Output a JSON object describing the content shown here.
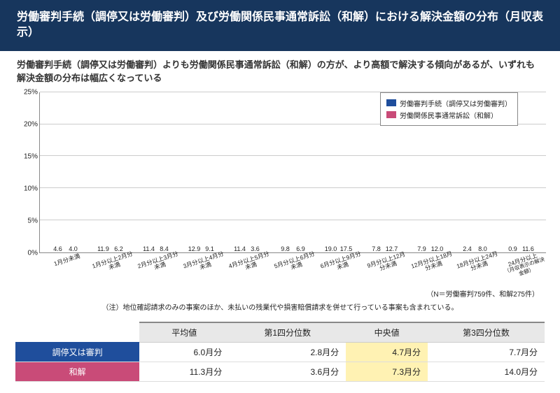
{
  "header": {
    "title": "労働審判手続（調停又は労働審判）及び労働関係民事通常訴訟（和解）における解決金額の分布（月収表示）"
  },
  "subtitle": "労働審判手続（調停又は労働審判）よりも労働関係民事通常訴訟（和解）の方が、より高額で解決する傾向があるが、いずれも解決金額の分布は幅広くなっている",
  "chart": {
    "type": "bar",
    "ylim": [
      0,
      25
    ],
    "ytick_step": 5,
    "ytick_suffix": "%",
    "grid_color": "#cccccc",
    "axis_color": "#888888",
    "series": [
      {
        "name": "労働審判手続（調停又は労働審判）",
        "color": "#1f4e9c"
      },
      {
        "name": "労働関係民事通常訴訟（和解）",
        "color": "#c94b78"
      }
    ],
    "categories": [
      "1月分未満",
      "1月分以上2月分未満",
      "2月分以上3月分未満",
      "3月分以上4月分未満",
      "4月分以上5月分未満",
      "5月分以上6月分未満",
      "6月分以上9月分未満",
      "9月分以上12月分未満",
      "12月分以上18月分未満",
      "18月分以上24月分未満",
      "24月分以上"
    ],
    "x_extra_note": "（月収表示の解決金額）",
    "values": {
      "s0": [
        4.6,
        11.9,
        11.4,
        12.9,
        11.4,
        9.8,
        19.0,
        7.8,
        7.9,
        2.4,
        0.9
      ],
      "s1": [
        4.0,
        6.2,
        8.4,
        9.1,
        3.6,
        6.9,
        17.5,
        12.7,
        12.0,
        8.0,
        11.6
      ]
    }
  },
  "n_note": "（N＝労働審判759件、和解275件）",
  "footnote": "（注）地位確認請求のみの事案のほか、未払いの残業代や損害賠償請求を併せて行っている事案も含まれている。",
  "table": {
    "columns": [
      "",
      "平均値",
      "第1四分位数",
      "中央値",
      "第3四分位数"
    ],
    "highlight_col": 3,
    "rows": [
      {
        "label": "調停又は審判",
        "color": "#1f4e9c",
        "cells": [
          "6.0月分",
          "2.8月分",
          "4.7月分",
          "7.7月分"
        ]
      },
      {
        "label": "和解",
        "color": "#c94b78",
        "cells": [
          "11.3月分",
          "3.6月分",
          "7.3月分",
          "14.0月分"
        ]
      }
    ]
  }
}
